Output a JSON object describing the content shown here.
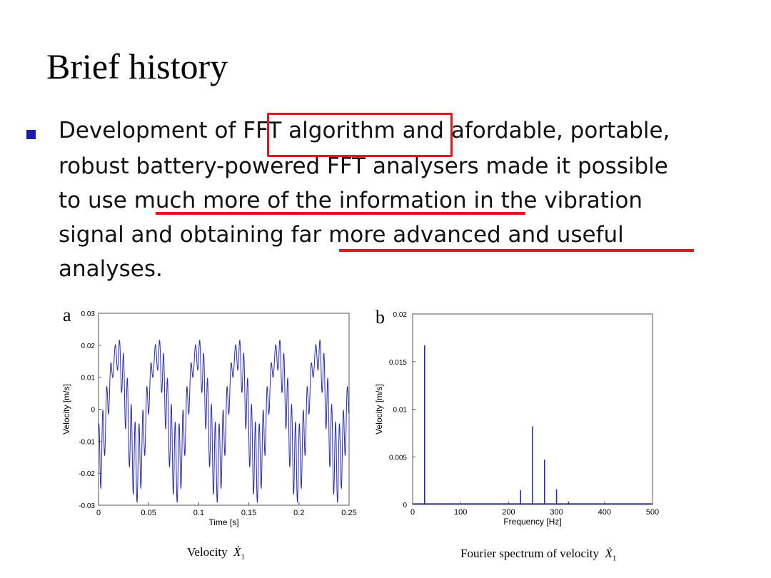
{
  "slide": {
    "title": "Brief history",
    "bullet_lines": [
      "Development of FFT algorithm and afordable, portable,",
      "robust battery-powered FFT analysers made it possible",
      "to use much more of the information in the vibration",
      "signal and obtaining far more advanced and useful",
      "analyses."
    ],
    "highlight_color": "#e0161e",
    "bullet_color": "#1c1ca8"
  },
  "chart_data": [
    {
      "panel": "a",
      "type": "line",
      "xlabel": "Time [s]",
      "ylabel": "Velocity [m/s]",
      "xlim": [
        0,
        0.25
      ],
      "ylim": [
        -0.03,
        0.03
      ],
      "xticks": [
        "0",
        "0.05",
        "0.1",
        "0.15",
        "0.2",
        "0.25"
      ],
      "yticks": [
        "0.03",
        "0.02",
        "0.01",
        "0",
        "-0.01",
        "-0.02",
        "-0.03"
      ],
      "series": [
        {
          "color": "#2b2bb0",
          "components": [
            {
              "freq_hz": 25,
              "amp": 0.017
            },
            {
              "freq_hz": 250,
              "amp": 0.008
            },
            {
              "freq_hz": 275,
              "amp": 0.0045
            }
          ]
        }
      ],
      "caption": "Velocity",
      "caption_symbol": "Ẋ",
      "caption_subscript": "1"
    },
    {
      "panel": "b",
      "type": "bar",
      "xlabel": "Frequency [Hz]",
      "ylabel": "Velocity [m/s]",
      "xlim": [
        0,
        500
      ],
      "ylim": [
        0,
        0.02
      ],
      "xticks": [
        "0",
        "100",
        "200",
        "300",
        "400",
        "500"
      ],
      "yticks": [
        "0.02",
        "0.015",
        "0.01",
        "0.005",
        "0"
      ],
      "peaks": [
        {
          "x": 25,
          "y": 0.0167
        },
        {
          "x": 225,
          "y": 0.0015
        },
        {
          "x": 250,
          "y": 0.0082
        },
        {
          "x": 275,
          "y": 0.0047
        },
        {
          "x": 300,
          "y": 0.0016
        },
        {
          "x": 325,
          "y": 0.0003
        }
      ],
      "caption": "Fourier spectrum of velocity",
      "caption_symbol": "Ẋ",
      "caption_subscript": "1"
    }
  ]
}
